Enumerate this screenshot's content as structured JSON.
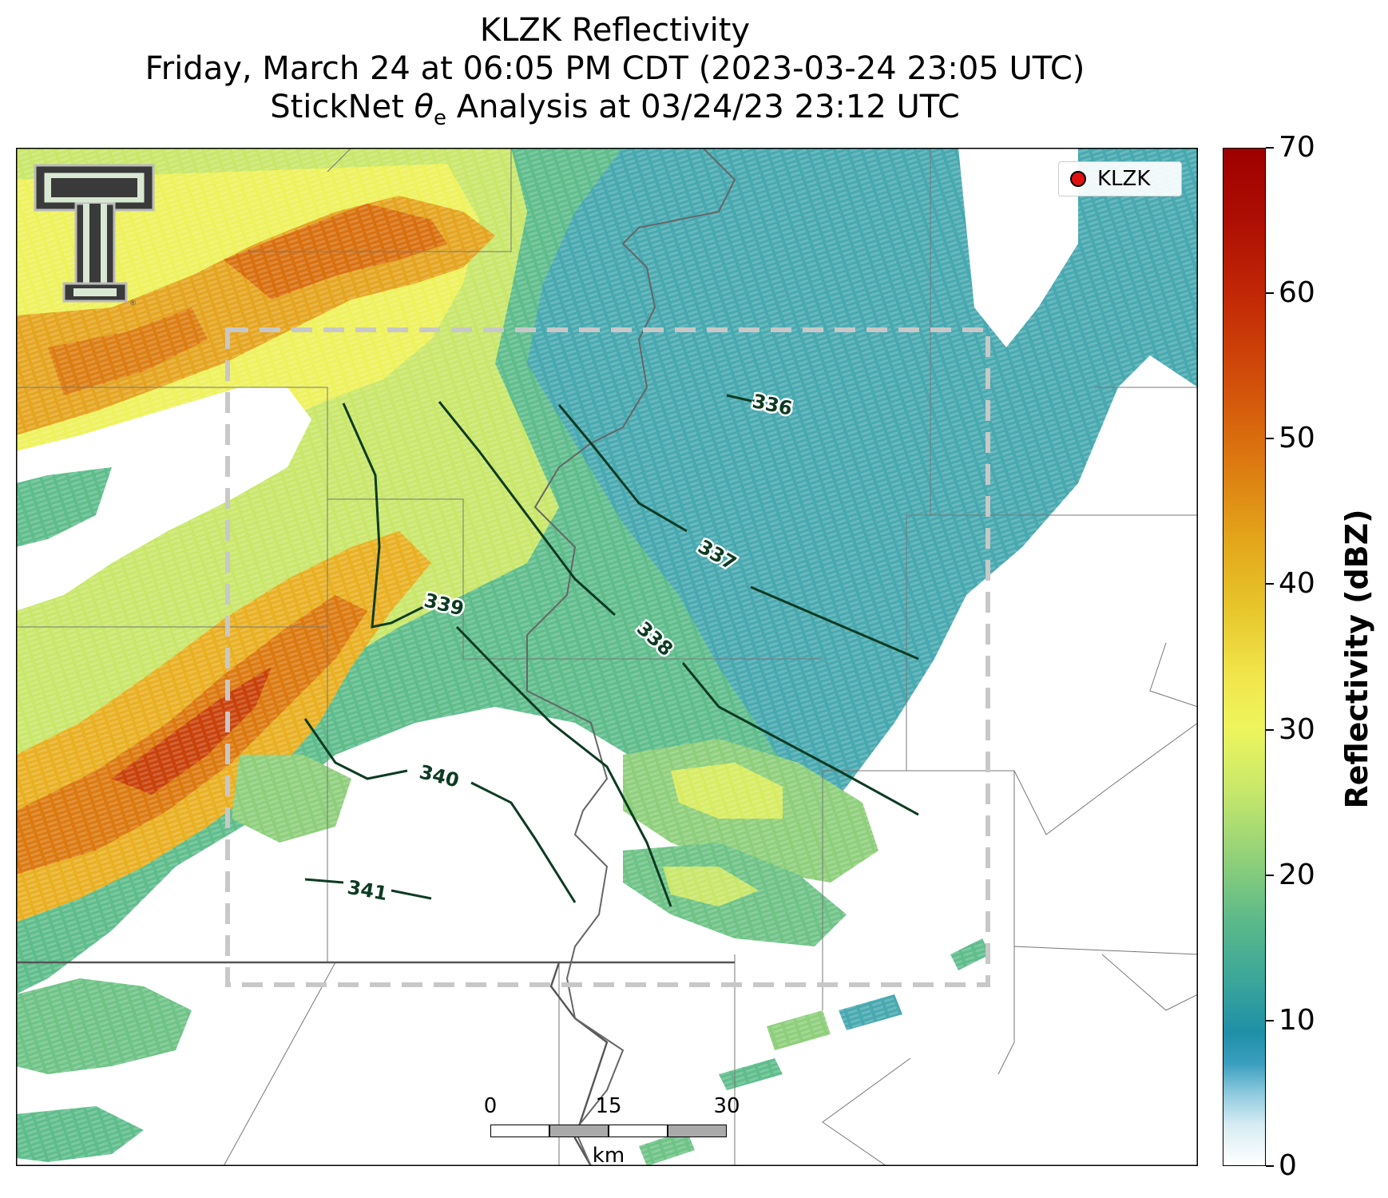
{
  "title": {
    "line1": "KLZK Reflectivity",
    "line2": "Friday, March 24 at 06:05 PM CDT (2023-03-24 23:05 UTC)",
    "line3_prefix": "StickNet ",
    "line3_symbol": "θ",
    "line3_subscript": "e",
    "line3_suffix": " Analysis at 03/24/23 23:12 UTC"
  },
  "legend": {
    "marker_label": "KLZK",
    "marker_color": "#e01010"
  },
  "colorbar": {
    "label": "Reflectivity (dBZ)",
    "range": [
      0,
      70
    ],
    "ticks": [
      "0",
      "10",
      "20",
      "30",
      "40",
      "50",
      "60",
      "70"
    ]
  },
  "contours": {
    "labels": [
      "336",
      "337",
      "338",
      "339",
      "340",
      "341"
    ],
    "color": "#0d3b22"
  },
  "scale_bar": {
    "ticks": [
      "0",
      "15",
      "30"
    ],
    "unit": "km"
  },
  "logo": {
    "name": "texas-tech-double-t-logo"
  }
}
